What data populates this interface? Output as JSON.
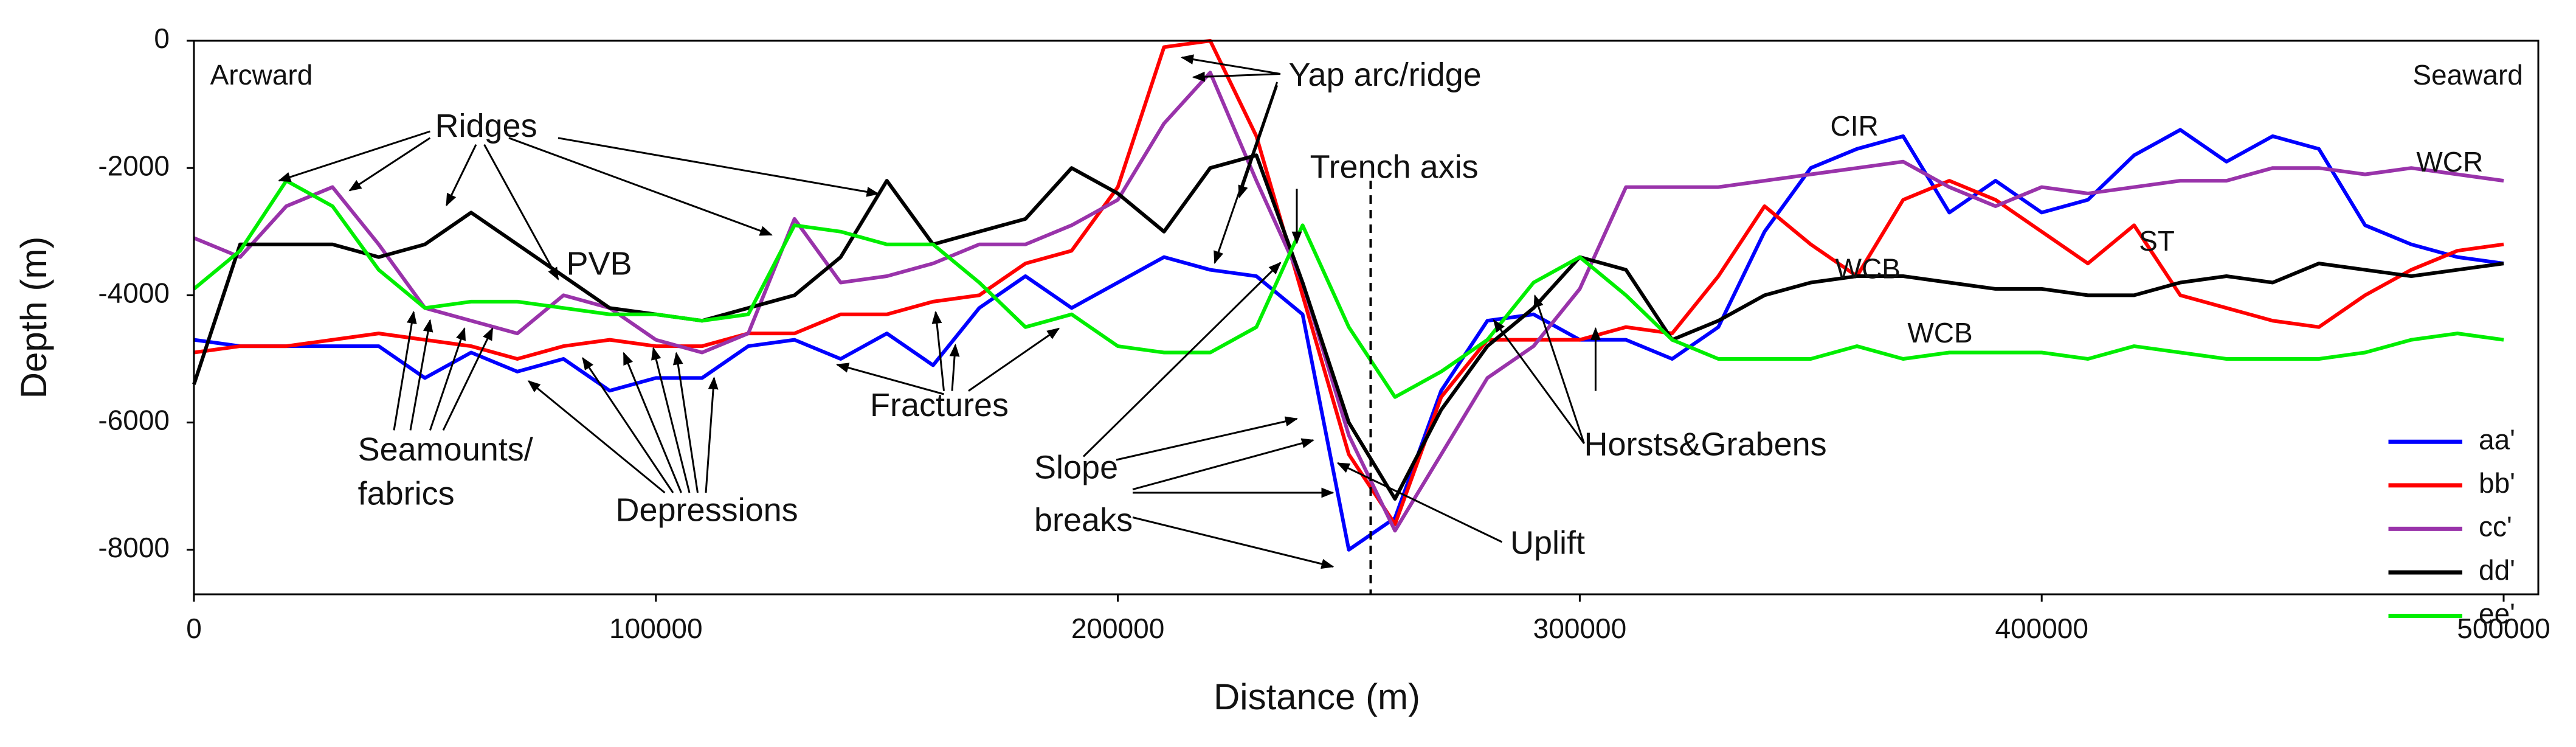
{
  "chart_data": {
    "type": "line",
    "x_label": "Distance (m)",
    "y_label": "Depth (m)",
    "xlim": [
      0,
      507500
    ],
    "ylim": [
      -8700,
      0
    ],
    "xticks": [
      0,
      100000,
      200000,
      300000,
      400000,
      500000
    ],
    "yticks": [
      0,
      -2000,
      -4000,
      -6000,
      -8000
    ],
    "legend": "lower right",
    "x": [
      0,
      10000,
      20000,
      30000,
      40000,
      50000,
      60000,
      70000,
      80000,
      90000,
      100000,
      110000,
      120000,
      130000,
      140000,
      150000,
      160000,
      170000,
      180000,
      190000,
      200000,
      210000,
      220000,
      230000,
      240000,
      250000,
      260000,
      270000,
      280000,
      290000,
      300000,
      310000,
      320000,
      330000,
      340000,
      350000,
      360000,
      370000,
      380000,
      390000,
      400000,
      410000,
      420000,
      430000,
      440000,
      450000,
      460000,
      470000,
      480000,
      490000,
      500000
    ],
    "series": [
      {
        "name": "aa'",
        "color": "#0000ff",
        "values": [
          -4700,
          -4800,
          -4800,
          -4800,
          -4800,
          -5300,
          -4900,
          -5200,
          -5000,
          -5500,
          -5300,
          -5300,
          -4800,
          -4700,
          -5000,
          -4600,
          -5100,
          -4200,
          -3700,
          -4200,
          -3800,
          -3400,
          -3600,
          -3700,
          -4300,
          -8000,
          -7500,
          -5500,
          -4400,
          -4300,
          -4700,
          -4700,
          -5000,
          -4500,
          -3000,
          -2000,
          -1700,
          -1500,
          -2700,
          -2200,
          -2700,
          -2500,
          -1800,
          -1400,
          -1900,
          -1500,
          -1700,
          -2900,
          -3200,
          -3400,
          -3500
        ]
      },
      {
        "name": "bb'",
        "color": "#ff0000",
        "values": [
          -4900,
          -4800,
          -4800,
          -4700,
          -4600,
          -4700,
          -4800,
          -5000,
          -4800,
          -4700,
          -4800,
          -4800,
          -4600,
          -4600,
          -4300,
          -4300,
          -4100,
          -4000,
          -3500,
          -3300,
          -2300,
          -100,
          0,
          -1500,
          -4000,
          -6500,
          -7600,
          -5600,
          -4700,
          -4700,
          -4700,
          -4500,
          -4600,
          -3700,
          -2600,
          -3200,
          -3700,
          -2500,
          -2200,
          -2500,
          -3000,
          -3500,
          -2900,
          -4000,
          -4200,
          -4400,
          -4500,
          -4000,
          -3600,
          -3300,
          -3200
        ]
      },
      {
        "name": "cc'",
        "color": "#9933aa",
        "values": [
          -3100,
          -3400,
          -2600,
          -2300,
          -3200,
          -4200,
          -4400,
          -4600,
          -4000,
          -4200,
          -4700,
          -4900,
          -4600,
          -2800,
          -3800,
          -3700,
          -3500,
          -3200,
          -3200,
          -2900,
          -2500,
          -1300,
          -500,
          -2200,
          -3800,
          -6200,
          -7700,
          -6500,
          -5300,
          -4800,
          -3900,
          -2300,
          -2300,
          -2300,
          -2200,
          -2100,
          -2000,
          -1900,
          -2300,
          -2600,
          -2300,
          -2400,
          -2300,
          -2200,
          -2200,
          -2000,
          -2000,
          -2100,
          -2000,
          -2100,
          -2200
        ]
      },
      {
        "name": "dd'",
        "color": "#000000",
        "values": [
          -5400,
          -3200,
          -3200,
          -3200,
          -3400,
          -3200,
          -2700,
          -3200,
          -3700,
          -4200,
          -4300,
          -4400,
          -4200,
          -4000,
          -3400,
          -2200,
          -3200,
          -3000,
          -2800,
          -2000,
          -2400,
          -3000,
          -2000,
          -1800,
          -3800,
          -6000,
          -7200,
          -5800,
          -4800,
          -4200,
          -3400,
          -3600,
          -4700,
          -4400,
          -4000,
          -3800,
          -3700,
          -3700,
          -3800,
          -3900,
          -3900,
          -4000,
          -4000,
          -3800,
          -3700,
          -3800,
          -3500,
          -3600,
          -3700,
          -3600,
          -3500
        ]
      },
      {
        "name": "ee'",
        "color": "#00ee00",
        "values": [
          -3900,
          -3300,
          -2200,
          -2600,
          -3600,
          -4200,
          -4100,
          -4100,
          -4200,
          -4300,
          -4300,
          -4400,
          -4300,
          -2900,
          -3000,
          -3200,
          -3200,
          -3800,
          -4500,
          -4300,
          -4800,
          -4900,
          -4900,
          -4500,
          -2900,
          -4500,
          -5600,
          -5200,
          -4700,
          -3800,
          -3400,
          -4000,
          -4700,
          -5000,
          -5000,
          -5000,
          -4800,
          -5000,
          -4900,
          -4900,
          -4900,
          -5000,
          -4800,
          -4900,
          -5000,
          -5000,
          -5000,
          -4900,
          -4700,
          -4600,
          -4700
        ]
      }
    ],
    "annotations": [
      "Arcward",
      "Seaward",
      "Ridges",
      "PVB",
      "Seamounts/",
      "fabrics",
      "Depressions",
      "Fractures",
      "Yap arc/ridge",
      "Trench axis",
      "Slope",
      "breaks",
      "Uplift",
      "Horsts&Grabens",
      "CIR",
      "WCR",
      "ST",
      "WCB",
      "WCB"
    ]
  }
}
